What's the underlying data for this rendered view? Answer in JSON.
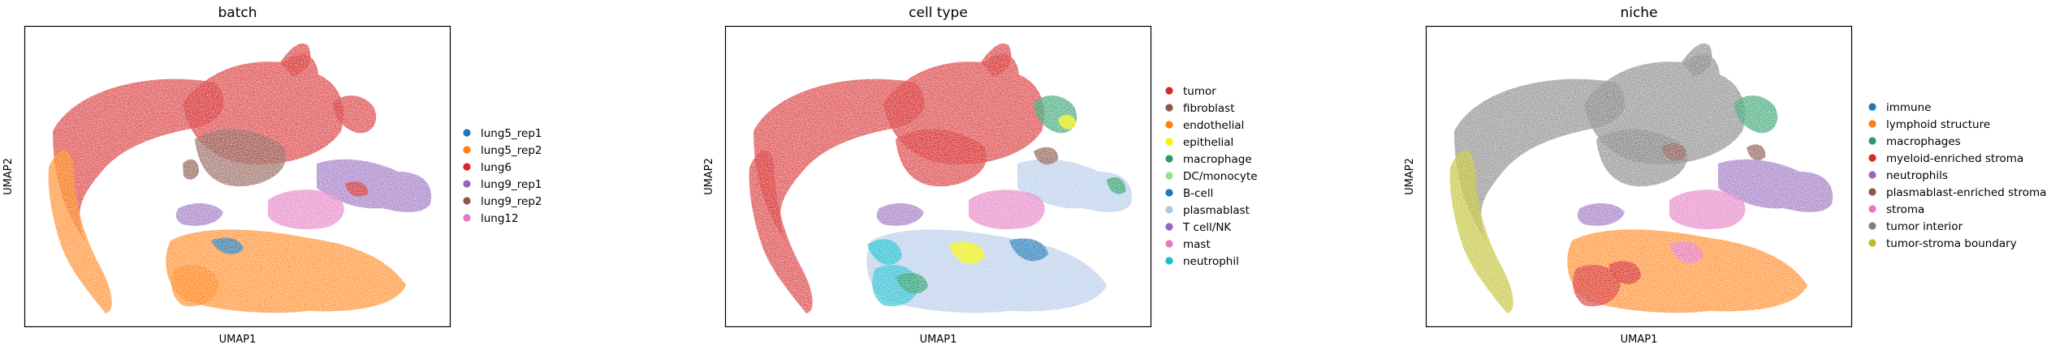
{
  "chart_data": [
    {
      "type": "scatter",
      "title": "batch",
      "xlabel": "UMAP1",
      "ylabel": "UMAP2",
      "legend_placement": "right",
      "grid": false,
      "series": [
        {
          "name": "lung5_rep1",
          "color": "#1f77b4"
        },
        {
          "name": "lung5_rep2",
          "color": "#ff7f0e"
        },
        {
          "name": "lung6",
          "color": "#d62728"
        },
        {
          "name": "lung9_rep1",
          "color": "#9467bd"
        },
        {
          "name": "lung9_rep2",
          "color": "#8c564b"
        },
        {
          "name": "lung12",
          "color": "#e377c2"
        }
      ]
    },
    {
      "type": "scatter",
      "title": "cell type",
      "xlabel": "UMAP1",
      "ylabel": "UMAP2",
      "legend_placement": "right",
      "grid": false,
      "series": [
        {
          "name": "tumor",
          "color": "#d62728"
        },
        {
          "name": "fibroblast",
          "color": "#8c564b"
        },
        {
          "name": "endothelial",
          "color": "#ff7f0e"
        },
        {
          "name": "epithelial",
          "color": "#f5f500"
        },
        {
          "name": "macrophage",
          "color": "#279e68"
        },
        {
          "name": "DC/monocyte",
          "color": "#98df8a"
        },
        {
          "name": "B-cell",
          "color": "#1f77b4"
        },
        {
          "name": "plasmablast",
          "color": "#aec7e8"
        },
        {
          "name": "T cell/NK",
          "color": "#9467bd"
        },
        {
          "name": "mast",
          "color": "#e377c2"
        },
        {
          "name": "neutrophil",
          "color": "#17becf"
        }
      ]
    },
    {
      "type": "scatter",
      "title": "niche",
      "xlabel": "UMAP1",
      "ylabel": "UMAP2",
      "legend_placement": "right",
      "grid": false,
      "series": [
        {
          "name": "immune",
          "color": "#1f77b4"
        },
        {
          "name": "lymphoid structure",
          "color": "#ff7f0e"
        },
        {
          "name": "macrophages",
          "color": "#279e68"
        },
        {
          "name": "myeloid-enriched stroma",
          "color": "#d62728"
        },
        {
          "name": "neutrophils",
          "color": "#9467bd"
        },
        {
          "name": "plasmablast-enriched stroma",
          "color": "#8c564b"
        },
        {
          "name": "stroma",
          "color": "#e377c2"
        },
        {
          "name": "tumor interior",
          "color": "#7f7f7f"
        },
        {
          "name": "tumor-stroma boundary",
          "color": "#bcbd22"
        }
      ]
    }
  ]
}
